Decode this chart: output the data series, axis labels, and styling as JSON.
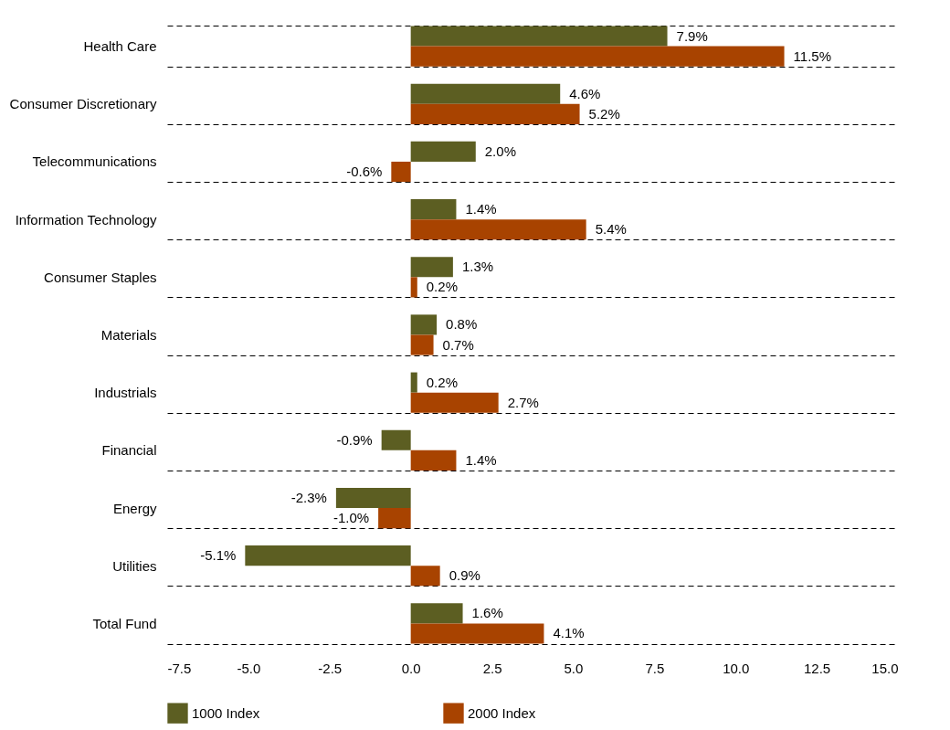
{
  "chart_data": {
    "type": "bar",
    "orientation": "horizontal",
    "categories": [
      "Health Care",
      "Consumer Discretionary",
      "Telecommunications",
      "Information Technology",
      "Consumer Staples",
      "Materials",
      "Industrials",
      "Financial",
      "Energy",
      "Utilities",
      "Total Fund"
    ],
    "series": [
      {
        "name": "1000 Index",
        "color": "#5c5e22",
        "values": [
          7.9,
          4.6,
          2.0,
          1.4,
          1.3,
          0.8,
          0.2,
          -0.9,
          -2.3,
          -5.1,
          1.6
        ],
        "value_labels": [
          "7.9%",
          "4.6%",
          "2.0%",
          "1.4%",
          "1.3%",
          "0.8%",
          "0.2%",
          "-0.9%",
          "-2.3%",
          "-5.1%",
          "1.6%"
        ]
      },
      {
        "name": "2000 Index",
        "color": "#a84300",
        "values": [
          11.5,
          5.2,
          -0.6,
          5.4,
          0.2,
          0.7,
          2.7,
          1.4,
          -1.0,
          0.9,
          4.1
        ],
        "value_labels": [
          "11.5%",
          "5.2%",
          "-0.6%",
          "5.4%",
          "0.2%",
          "0.7%",
          "2.7%",
          "1.4%",
          "-1.0%",
          "0.9%",
          "4.1%"
        ]
      }
    ],
    "xlim": [
      -7.5,
      15
    ],
    "xticks": [
      -7.5,
      {
        "value": -5,
        "label": "-5.0"
      },
      -2.5,
      {
        "value": 0,
        "label": "0.0"
      },
      2.5,
      {
        "value": 5,
        "label": "5.0"
      },
      7.5,
      {
        "value": 10,
        "label": "10.0"
      },
      12.5,
      {
        "value": 15,
        "label": "15.0"
      }
    ],
    "grid": "y",
    "legend": "bottom"
  }
}
